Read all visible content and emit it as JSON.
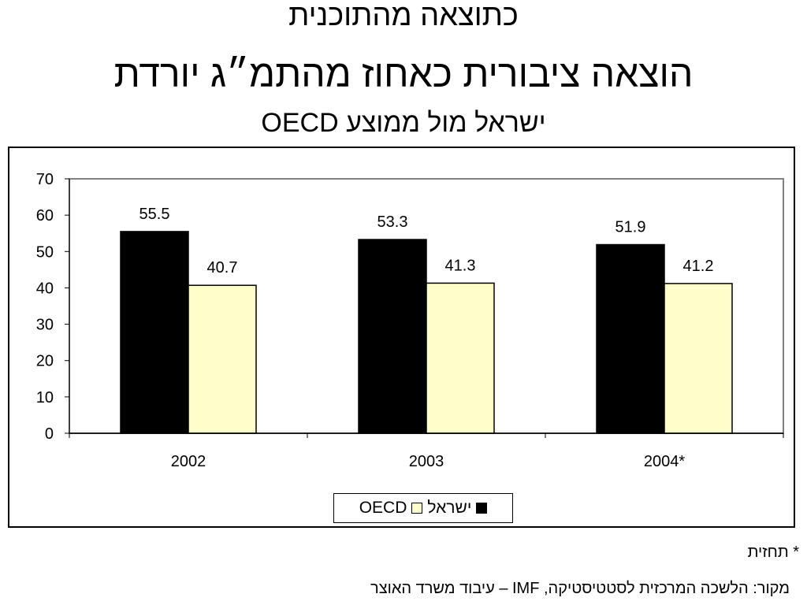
{
  "header": {
    "title_line1": "כתוצאה מהתוכנית",
    "title_line2": "הוצאה ציבורית כאחוז מהתמ״ג יורדת",
    "title_line3": "ישראל מול ממוצע OECD"
  },
  "chart_data": {
    "type": "bar",
    "categories": [
      "2002",
      "2003",
      "2004*"
    ],
    "series": [
      {
        "name": "ישראל",
        "values": [
          55.5,
          53.3,
          51.9
        ],
        "color": "#000000"
      },
      {
        "name": "OECD",
        "values": [
          40.7,
          41.3,
          41.2
        ],
        "color": "#FFFFCC"
      }
    ],
    "ylim": [
      0,
      70
    ],
    "yticks": [
      0,
      10,
      20,
      30,
      40,
      50,
      60,
      70
    ],
    "data_labels": true,
    "grid": false,
    "legend": "bottom",
    "xlabel": "",
    "ylabel": ""
  },
  "legend": {
    "items": [
      {
        "label": "ישראל",
        "color": "#000000"
      },
      {
        "label": "OECD",
        "color": "#FFFFCC"
      }
    ]
  },
  "footer": {
    "footnote": "* תחזית",
    "source": "מקור: הלשכה המרכזית לסטטיסטיקה, IMF – עיבוד משרד האוצר"
  },
  "colors": {
    "plot_border": "#808080",
    "background": "#FFFFFF"
  }
}
